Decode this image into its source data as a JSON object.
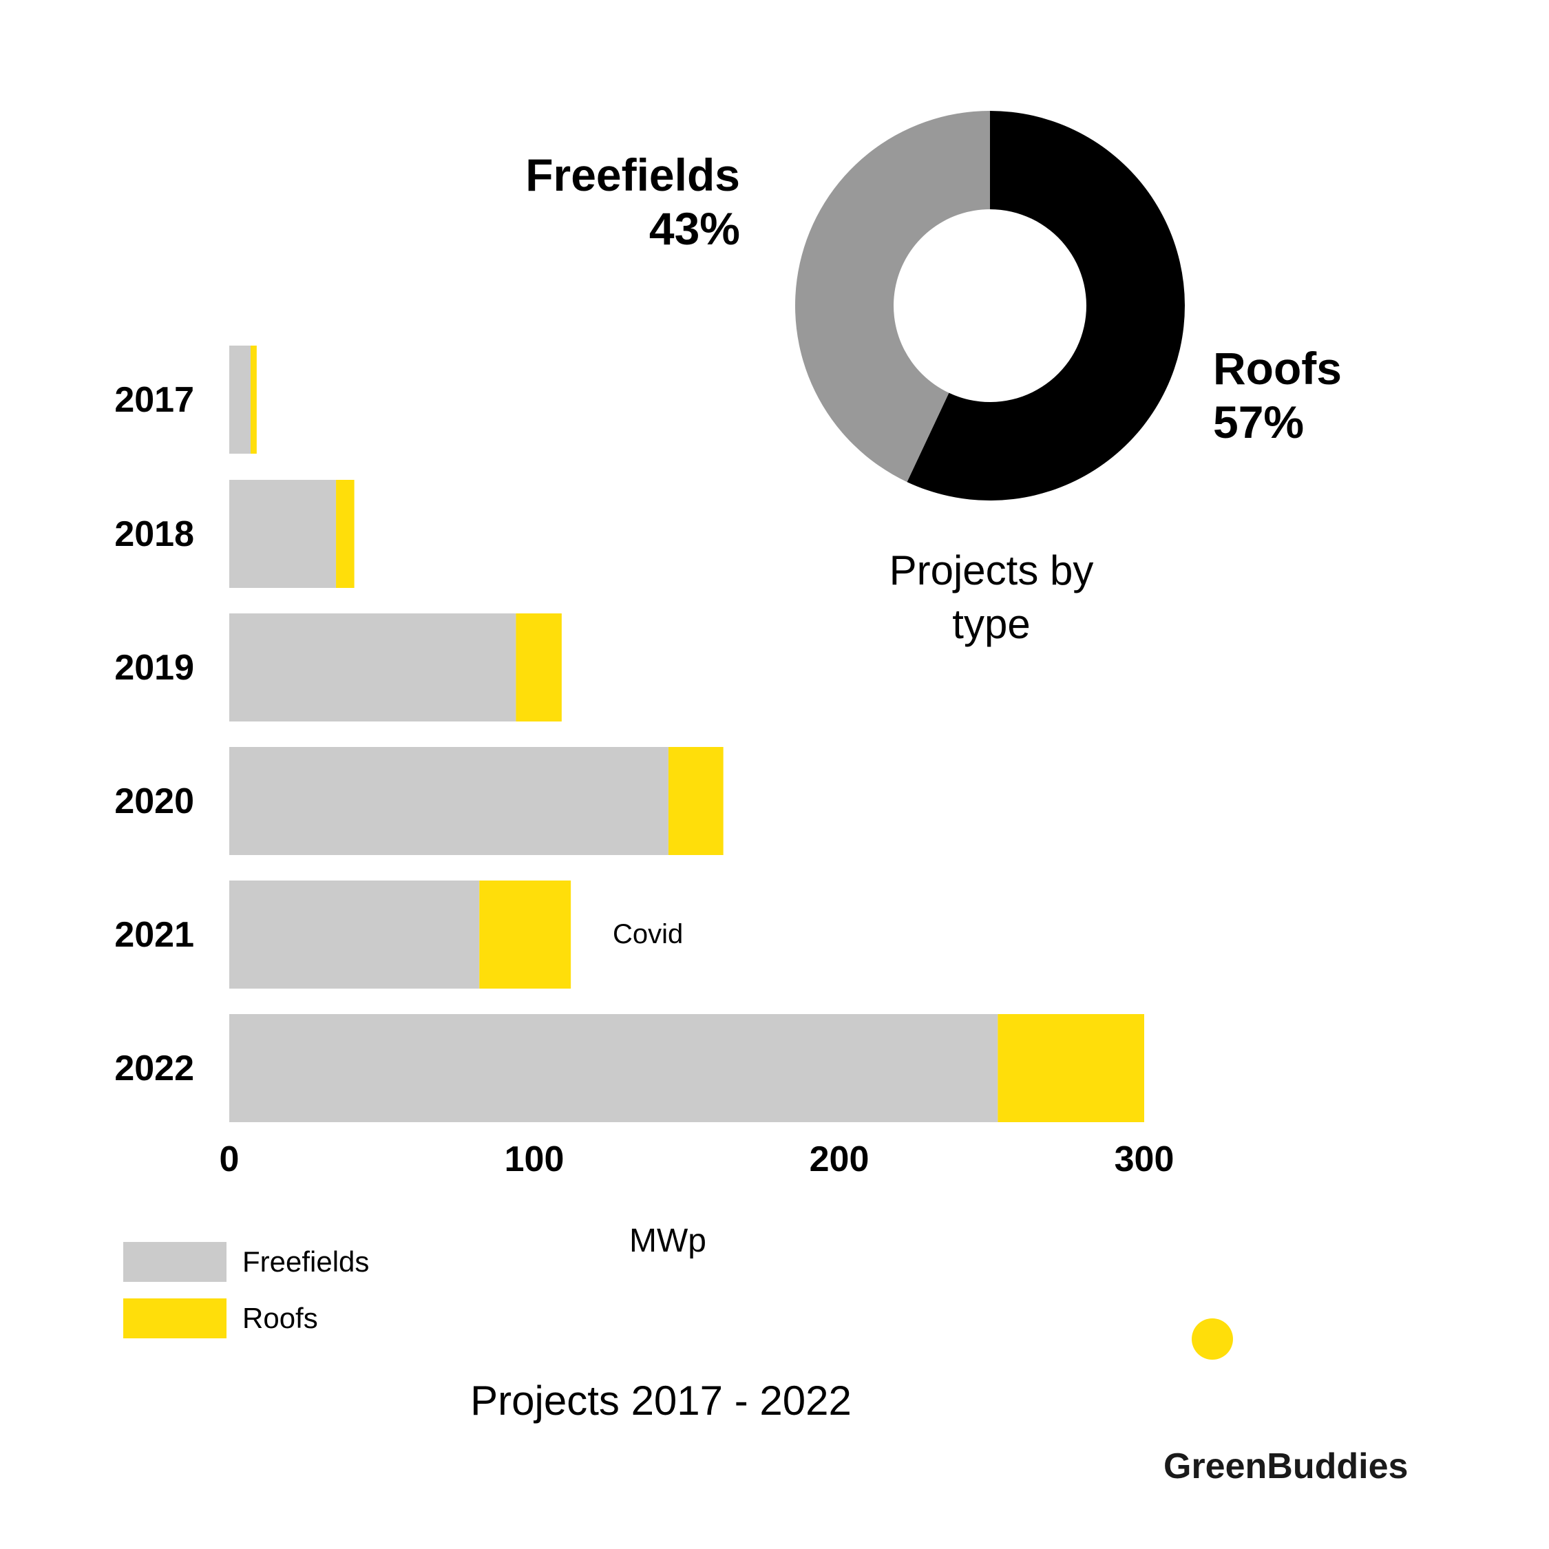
{
  "colors": {
    "freefields": "#cbcbcb",
    "roofs": "#ffde0a",
    "donut_freefields": "#999999",
    "donut_roofs": "#000000",
    "brand_dot": "#ffde0a"
  },
  "chart_data": [
    {
      "type": "bar",
      "orientation": "horizontal",
      "stacked": true,
      "title": "Projects 2017 - 2022",
      "xlabel": "MWp",
      "ylabel": "",
      "categories": [
        "2017",
        "2018",
        "2019",
        "2020",
        "2021",
        "2022"
      ],
      "series": [
        {
          "name": "Freefields",
          "color": "#cbcbcb",
          "values": [
            7,
            35,
            94,
            144,
            82,
            252
          ]
        },
        {
          "name": "Roofs",
          "color": "#ffde0a",
          "values": [
            2,
            6,
            15,
            18,
            30,
            48
          ]
        }
      ],
      "xlim": [
        0,
        300
      ],
      "xticks": [
        "0",
        "100",
        "200",
        "300"
      ],
      "grid": false,
      "legend": "bottom-left",
      "annotations": [
        {
          "category": "2021",
          "text": "Covid"
        }
      ]
    },
    {
      "type": "pie",
      "donut": true,
      "title": "Projects by type",
      "slices": [
        {
          "label": "Roofs",
          "value": 57,
          "display": "57%",
          "color": "#000000"
        },
        {
          "label": "Freefields",
          "value": 43,
          "display": "43%",
          "color": "#999999"
        }
      ]
    }
  ],
  "brand": {
    "name": "GreenBuddies"
  }
}
